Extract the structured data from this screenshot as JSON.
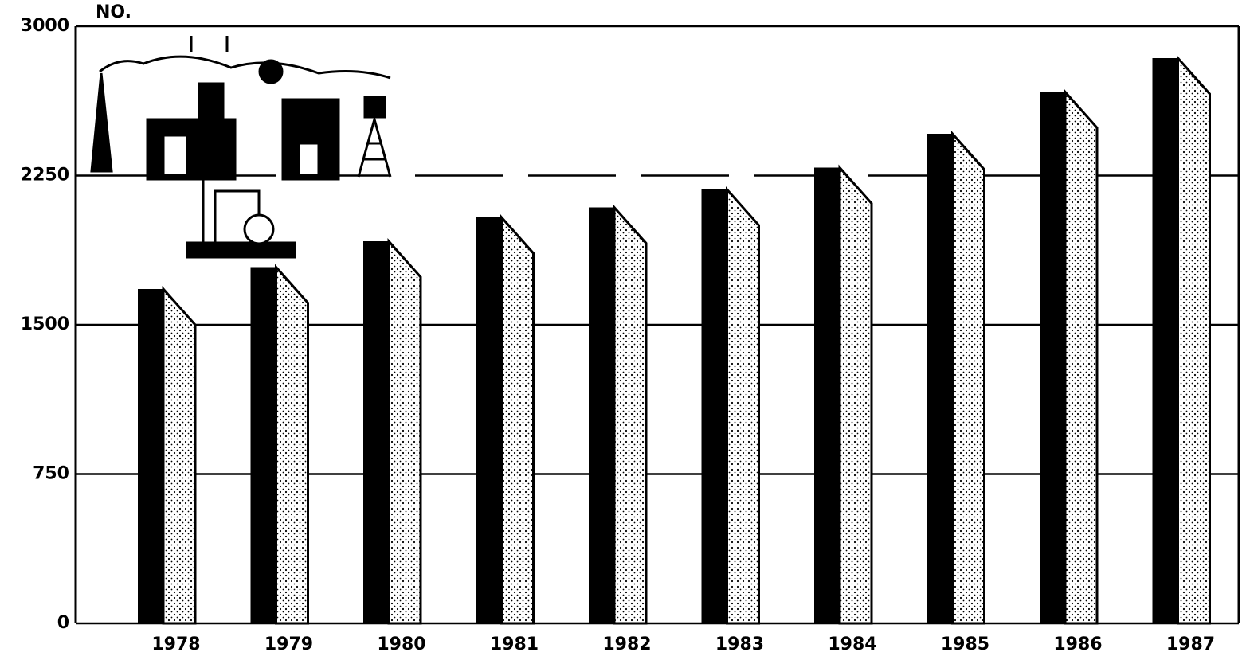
{
  "chart_data": {
    "type": "bar",
    "y_label": "NO.",
    "categories": [
      "1978",
      "1979",
      "1980",
      "1981",
      "1982",
      "1983",
      "1984",
      "1985",
      "1986",
      "1987"
    ],
    "values": [
      1680,
      1790,
      1920,
      2040,
      2090,
      2180,
      2290,
      2460,
      2670,
      2840
    ],
    "color": "#000000",
    "ylim": [
      0,
      3000
    ],
    "yticks": [
      0,
      750,
      1500,
      2250,
      3000
    ],
    "grid": true
  }
}
